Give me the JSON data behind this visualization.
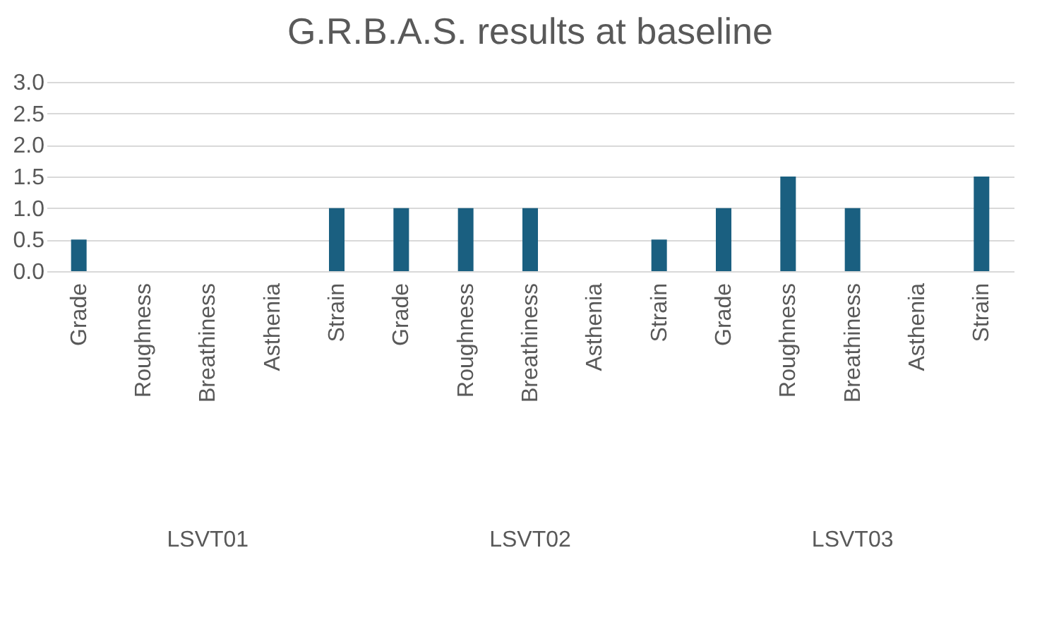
{
  "chart_data": {
    "type": "bar",
    "title": "G.R.B.A.S. results at baseline",
    "categories": [
      "Grade",
      "Roughness",
      "Breathiness",
      "Asthenia",
      "Strain",
      "Grade",
      "Roughness",
      "Breathiness",
      "Asthenia",
      "Strain",
      "Grade",
      "Roughness",
      "Breathiness",
      "Asthenia",
      "Strain"
    ],
    "values": [
      0.5,
      0,
      0,
      0,
      1,
      1,
      1,
      1,
      0,
      0.5,
      1,
      1.5,
      1,
      0,
      1.5
    ],
    "color": "#1a5f80",
    "ylim": [
      0,
      3
    ],
    "yticks": [
      {
        "value": 0,
        "label": "0.0"
      },
      {
        "value": 0.5,
        "label": "0.5"
      },
      {
        "value": 1,
        "label": "1.0"
      },
      {
        "value": 1.5,
        "label": "1.5"
      },
      {
        "value": 2,
        "label": "2.0"
      },
      {
        "value": 2.5,
        "label": "2.5"
      },
      {
        "value": 3,
        "label": "3.0"
      }
    ],
    "grid": "y",
    "annotations": [
      "LSVT01",
      "LSVT02",
      "LSVT03"
    ]
  }
}
